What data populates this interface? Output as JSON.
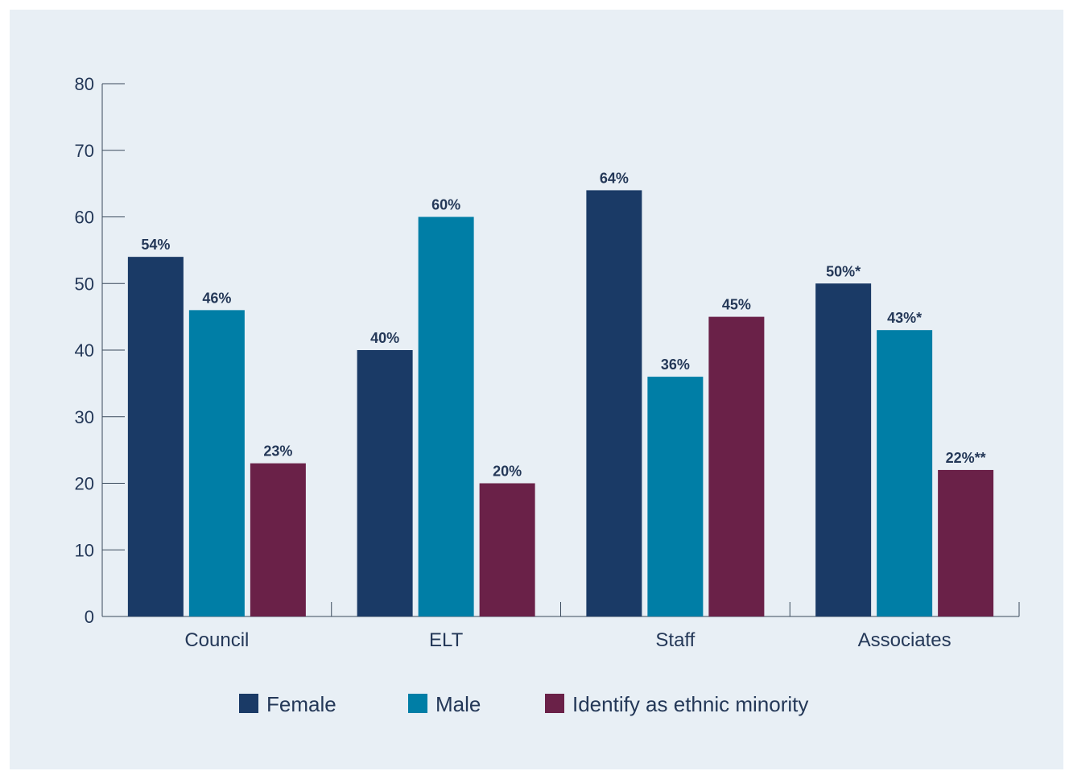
{
  "chart_data": {
    "type": "bar",
    "title": "",
    "xlabel": "",
    "ylabel": "",
    "ylim": [
      0,
      80
    ],
    "yticks": [
      0,
      10,
      20,
      30,
      40,
      50,
      60,
      70,
      80
    ],
    "categories": [
      "Council",
      "ELT",
      "Staff",
      "Associates"
    ],
    "series": [
      {
        "name": "Female",
        "color": "#1a3a66",
        "values": [
          54,
          40,
          64,
          50
        ],
        "labels": [
          "54%",
          "40%",
          "64%",
          "50%*"
        ]
      },
      {
        "name": "Male",
        "color": "#007ea6",
        "values": [
          46,
          60,
          36,
          43
        ],
        "labels": [
          "46%",
          "60%",
          "36%",
          "43%*"
        ]
      },
      {
        "name": "Identify as ethnic minority",
        "color": "#6a2148",
        "values": [
          23,
          20,
          45,
          22
        ],
        "labels": [
          "23%",
          "20%",
          "45%",
          "22%**"
        ]
      }
    ],
    "legend_position": "bottom",
    "grid": false
  }
}
